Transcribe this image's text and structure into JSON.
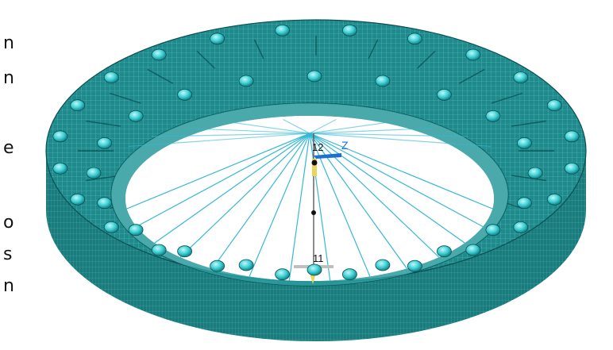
{
  "left_text_fragments": [
    "n",
    "n",
    "e",
    "",
    "o",
    "s",
    "n"
  ],
  "node_labels": {
    "top_center": "12",
    "bottom_center": "11",
    "axis_z": "Z"
  },
  "colors": {
    "mesh_fill": "#1f8a8c",
    "mesh_dark": "#0b4f52",
    "mesh_line": "#7fd6d8",
    "bolt": "#3fd1d6",
    "spoke": "#36b8d6",
    "axis_blue": "#1d6fd1",
    "axis_yellow": "#e6d65a"
  },
  "bolts": {
    "outer_count": 24,
    "inner_count": 20
  },
  "spokes_count": 14
}
